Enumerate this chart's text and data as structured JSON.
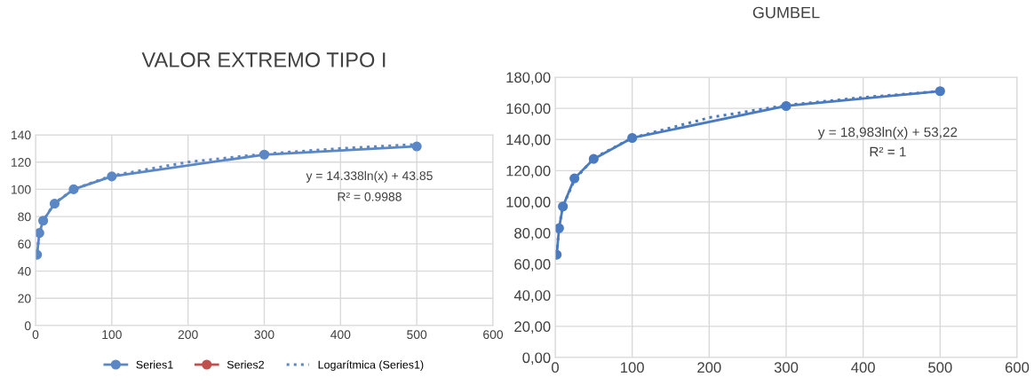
{
  "chart_data": [
    {
      "type": "line",
      "title": "VALOR EXTREMO TIPO I",
      "xlim": [
        0,
        600
      ],
      "xticks": [
        0,
        100,
        200,
        300,
        400,
        500,
        600
      ],
      "ylim": [
        0,
        140
      ],
      "yticks": [
        0,
        20,
        40,
        60,
        80,
        100,
        120,
        140
      ],
      "grid": true,
      "legend": "bottom",
      "marker": "circle",
      "series": [
        {
          "name": "Series1",
          "color": "#5b87c5",
          "x": [
            2,
            5,
            10,
            25,
            50,
            100,
            300,
            500
          ],
          "values": [
            52,
            68,
            77,
            89.5,
            100,
            109.5,
            125.5,
            131.5
          ]
        },
        {
          "name": "Series2",
          "color": "#c0504d"
        },
        {
          "name": "Logarítmica (Series1)",
          "color": "#5b87c5",
          "line_style": "dotted",
          "marker": "none",
          "x": [
            2,
            5,
            10,
            25,
            50,
            100,
            200,
            300,
            400,
            500
          ],
          "values": [
            54,
            67,
            77,
            90,
            100,
            110,
            120,
            126,
            130,
            133
          ]
        }
      ],
      "annotations": [
        "y = 14.338ln(x) + 43.85",
        "R² = 0.9988"
      ]
    },
    {
      "type": "line",
      "title": "GUMBEL",
      "xlim": [
        0,
        600
      ],
      "xticks": [
        0,
        100,
        200,
        300,
        400,
        500,
        600
      ],
      "ylim": [
        0,
        180
      ],
      "yticks": [
        {
          "value": 0,
          "label": "0,00"
        },
        {
          "value": 20,
          "label": "20,00"
        },
        {
          "value": 40,
          "label": "40,00"
        },
        {
          "value": 60,
          "label": "60,00"
        },
        {
          "value": 80,
          "label": "80,00"
        },
        {
          "value": 100,
          "label": "100,00"
        },
        {
          "value": 120,
          "label": "120,00"
        },
        {
          "value": 140,
          "label": "140,00"
        },
        {
          "value": 160,
          "label": "160,00"
        },
        {
          "value": 180,
          "label": "180,00"
        }
      ],
      "grid": true,
      "marker": "circle",
      "series": [
        {
          "color": "#4a7bc0",
          "x": [
            2,
            5,
            10,
            25,
            50,
            100,
            300,
            500
          ],
          "values": [
            66,
            83,
            97,
            115,
            127.5,
            141,
            161.5,
            171
          ]
        },
        {
          "color": "#4a7bc0",
          "line_style": "dotted",
          "marker": "none",
          "x": [
            2,
            5,
            10,
            25,
            50,
            100,
            200,
            300,
            400,
            500
          ],
          "values": [
            66,
            84,
            97,
            114,
            128,
            141,
            154,
            162,
            167,
            171
          ]
        }
      ],
      "annotations": [
        "y = 18,983ln(x) + 53,22",
        "R² = 1"
      ]
    }
  ]
}
